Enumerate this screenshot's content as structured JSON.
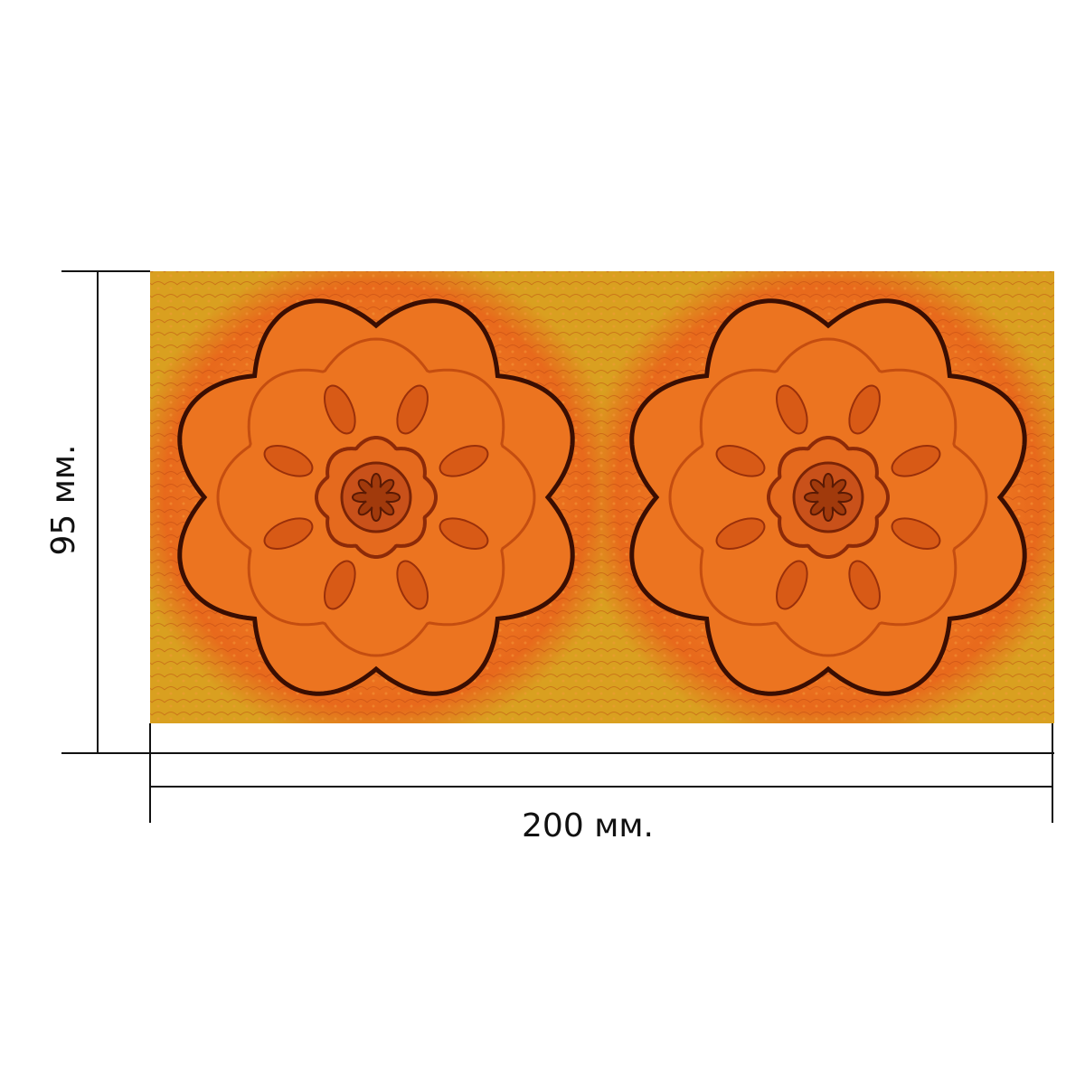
{
  "dimensions": {
    "width_label": "200 мм.",
    "height_label": "95 мм."
  }
}
